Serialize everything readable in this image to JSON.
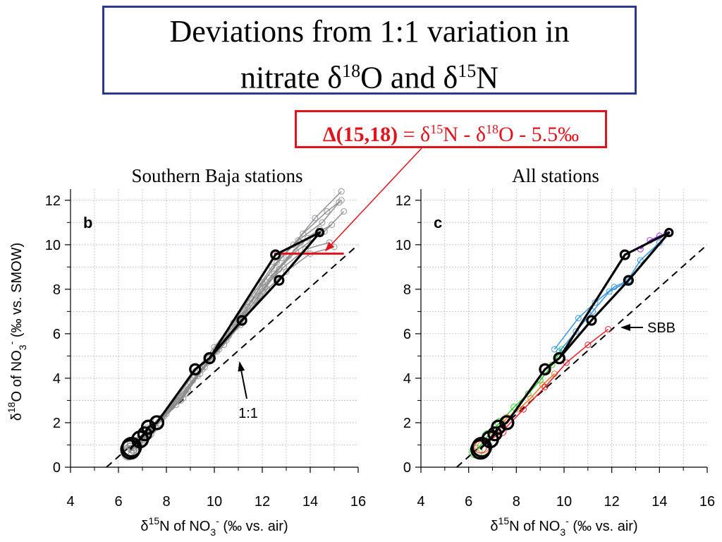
{
  "title": {
    "line1": "Deviations from 1:1 variation in",
    "line2_pre": "nitrate δ",
    "sup1": "18",
    "mid": "O and δ",
    "sup2": "15",
    "post": "N"
  },
  "formula": {
    "lhs": "Δ(15,18)",
    "eq": " = δ",
    "sup1": "15",
    "mid": "N - δ",
    "sup2": "18",
    "post": "O - 5.5‰"
  },
  "colors": {
    "title_border": "#2b3990",
    "formula": "#e0141c",
    "gray": "#8c8c8c",
    "black": "#000000",
    "grid": "#a0a0c8"
  },
  "chart_data": [
    {
      "type": "scatter",
      "panel_letter": "b",
      "title": "Southern Baja stations",
      "xlabel": "δ15N of NO3- (‰ vs. air)",
      "ylabel": "δ18O of NO3- (‰ vs. SMOW)",
      "xlim": [
        4,
        16
      ],
      "ylim": [
        0,
        12.5
      ],
      "xticks": [
        4,
        6,
        8,
        10,
        12,
        14,
        16
      ],
      "yticks": [
        0,
        2,
        4,
        6,
        8,
        10,
        12
      ],
      "grid": true,
      "one_to_one_label": "1:1",
      "reference_line": {
        "x0": 5.5,
        "y0": 0,
        "slope": 1
      },
      "delta_segment": {
        "x": [
          12.5,
          15.4
        ],
        "y": [
          9.6,
          9.6
        ]
      },
      "mean_profile": {
        "x": [
          6.5,
          6.55,
          6.9,
          7.1,
          7.25,
          7.6,
          9.2,
          9.8,
          11.15,
          12.7,
          14.4,
          12.55,
          9.8,
          9.2,
          7.6,
          7.25,
          6.9,
          6.55
        ],
        "y": [
          0.8,
          0.9,
          1.25,
          1.5,
          1.8,
          2.0,
          4.4,
          4.9,
          6.6,
          8.4,
          10.55,
          9.55,
          4.9,
          4.4,
          2.0,
          1.8,
          1.25,
          0.9
        ]
      },
      "series": [
        {
          "x": [
            6.5,
            7.0,
            7.6,
            8.5,
            9.2,
            10.0,
            10.8,
            11.5,
            12.4,
            13.3,
            14.2,
            15.3
          ],
          "y": [
            0.8,
            1.4,
            2.1,
            3.2,
            4.3,
            5.4,
            6.5,
            7.6,
            9.0,
            10.0,
            11.2,
            12.4
          ]
        },
        {
          "x": [
            6.6,
            7.2,
            7.9,
            8.8,
            9.6,
            10.3,
            11.0,
            11.8,
            12.6,
            13.5,
            14.5,
            15.2
          ],
          "y": [
            0.9,
            1.6,
            2.3,
            3.3,
            4.5,
            5.6,
            6.7,
            7.9,
            9.2,
            10.2,
            11.0,
            11.9
          ]
        },
        {
          "x": [
            6.4,
            7.0,
            7.7,
            8.6,
            9.3,
            10.1,
            10.9,
            11.7,
            12.5,
            13.4,
            14.6,
            15.4
          ],
          "y": [
            0.6,
            1.2,
            2.0,
            3.0,
            4.1,
            5.2,
            6.3,
            7.5,
            8.7,
            9.7,
            10.6,
            11.5
          ]
        },
        {
          "x": [
            6.7,
            7.3,
            8.0,
            8.9,
            9.8,
            10.6,
            11.3,
            12.1,
            12.9,
            13.8,
            14.8
          ],
          "y": [
            0.8,
            1.5,
            2.4,
            3.5,
            4.8,
            5.9,
            6.9,
            8.1,
            9.0,
            9.8,
            10.1
          ]
        },
        {
          "x": [
            6.5,
            7.1,
            7.8,
            8.4,
            9.1,
            9.9,
            10.7,
            11.4,
            12.3,
            13.1,
            13.9,
            14.9
          ],
          "y": [
            0.7,
            1.3,
            2.2,
            2.8,
            3.9,
            5.0,
            6.1,
            7.2,
            8.5,
            9.5,
            10.3,
            10.9
          ]
        },
        {
          "x": [
            6.6,
            7.2,
            8.2,
            9.0,
            9.7,
            10.5,
            11.2,
            12.0,
            12.8,
            13.7,
            14.7,
            15.3
          ],
          "y": [
            1.0,
            1.7,
            2.7,
            3.8,
            4.7,
            5.7,
            6.8,
            8.3,
            9.4,
            10.5,
            11.5,
            12.0
          ]
        },
        {
          "x": [
            6.4,
            6.9,
            7.5,
            8.3,
            9.4,
            10.2,
            11.1,
            11.9,
            12.7,
            13.6,
            14.4
          ],
          "y": [
            0.7,
            1.1,
            1.8,
            2.9,
            4.2,
            5.3,
            6.4,
            7.7,
            8.9,
            10.1,
            10.7
          ]
        },
        {
          "x": [
            6.8,
            7.4,
            8.1,
            8.7,
            9.5,
            10.4,
            11.2,
            12.2,
            13.0,
            14.0,
            15.0
          ],
          "y": [
            1.1,
            1.7,
            2.6,
            3.1,
            4.4,
            5.5,
            6.6,
            8.0,
            8.8,
            9.6,
            9.9
          ]
        }
      ]
    },
    {
      "type": "scatter",
      "panel_letter": "c",
      "title": "All stations",
      "xlabel": "δ15N of NO3- (‰ vs. air)",
      "ylabel": "",
      "xlim": [
        4,
        16
      ],
      "ylim": [
        0,
        12.5
      ],
      "xticks": [
        4,
        6,
        8,
        10,
        12,
        14,
        16
      ],
      "yticks": [
        0,
        2,
        4,
        6,
        8,
        10,
        12
      ],
      "grid": true,
      "sbb_label": "SBB",
      "reference_line": {
        "x0": 5.5,
        "y0": 0,
        "slope": 1
      },
      "mean_profile": {
        "x": [
          6.5,
          6.55,
          6.9,
          7.1,
          7.25,
          7.6,
          9.2,
          9.8,
          11.15,
          12.7,
          14.4,
          12.55,
          9.8,
          9.2,
          7.6,
          7.25,
          6.9,
          6.55
        ],
        "y": [
          0.8,
          0.9,
          1.25,
          1.5,
          1.8,
          2.0,
          4.4,
          4.9,
          6.6,
          8.4,
          10.55,
          9.55,
          4.9,
          4.4,
          2.0,
          1.8,
          1.25,
          0.9
        ]
      },
      "series": [
        {
          "color": "#22cc22",
          "x": [
            6.3,
            6.8,
            7.3,
            7.9,
            8.5,
            9.0,
            9.5,
            9.9
          ],
          "y": [
            0.7,
            1.4,
            2.0,
            2.7,
            3.3,
            3.9,
            4.6,
            5.3
          ]
        },
        {
          "color": "#e8731c",
          "x": [
            6.6,
            7.1,
            7.6,
            8.1,
            8.6,
            9.1,
            9.6
          ],
          "y": [
            0.9,
            1.6,
            2.2,
            2.6,
            3.1,
            3.7,
            4.2
          ]
        },
        {
          "color": "#2a8fdc",
          "x": [
            9.8,
            10.5,
            11.2,
            11.9,
            12.6,
            13.2,
            14.0
          ],
          "y": [
            5.2,
            6.1,
            7.0,
            7.9,
            8.3,
            9.3,
            10.1
          ]
        },
        {
          "color": "#8a2be2",
          "x": [
            13.2,
            13.6,
            14.0,
            14.3
          ],
          "y": [
            9.8,
            10.2,
            10.4,
            10.5
          ]
        },
        {
          "color": "#e0141c",
          "x": [
            6.5,
            7.4,
            8.3,
            9.2,
            10.1,
            11.0,
            11.85
          ],
          "y": [
            0.9,
            1.6,
            2.6,
            3.6,
            4.7,
            5.5,
            6.2
          ]
        },
        {
          "color": "#2a8fdc",
          "x": [
            9.6,
            10.6,
            11.3,
            12.1,
            12.7
          ],
          "y": [
            5.3,
            6.7,
            7.4,
            8.1,
            8.4
          ]
        }
      ]
    }
  ]
}
